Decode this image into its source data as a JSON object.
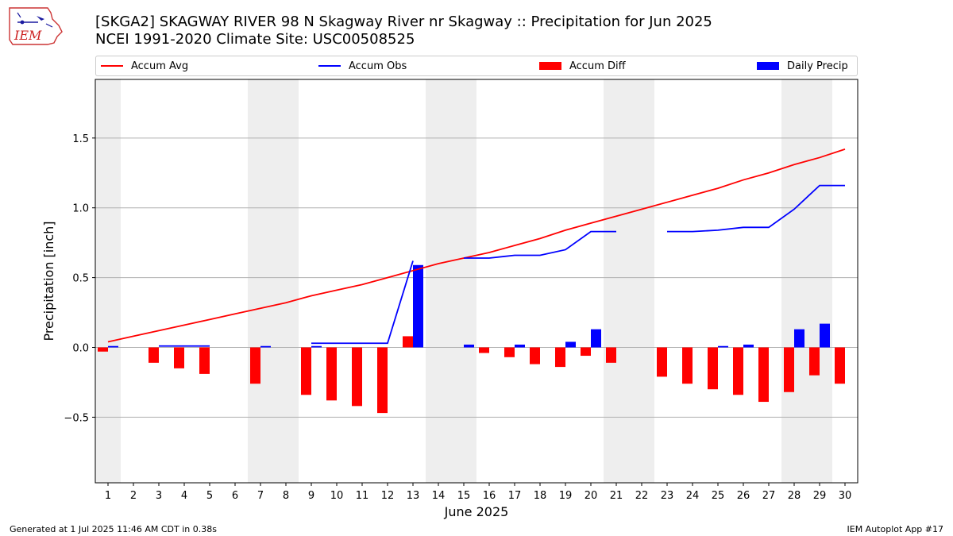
{
  "header": {
    "title_line1": "[SKGA2] SKAGWAY RIVER 98 N Skagway River nr Skagway :: Precipitation for Jun 2025",
    "title_line2": "NCEI 1991-2020 Climate Site: USC00508525"
  },
  "logo": {
    "text": "IEM"
  },
  "legend": {
    "items": [
      {
        "label": "Accum Avg",
        "color": "#ff0000",
        "kind": "line"
      },
      {
        "label": "Accum Obs",
        "color": "#0000ff",
        "kind": "line"
      },
      {
        "label": "Accum Diff",
        "color": "#ff0000",
        "kind": "bar"
      },
      {
        "label": "Daily Precip",
        "color": "#0000ff",
        "kind": "bar"
      }
    ],
    "placement": "top"
  },
  "chart_data": {
    "type": "bar",
    "title": "[SKGA2] SKAGWAY RIVER 98 N Skagway River nr Skagway :: Precipitation for Jun 2025",
    "subtitle": "NCEI 1991-2020 Climate Site: USC00508525",
    "xlabel": "June 2025",
    "ylabel": "Precipitation [inch]",
    "ylim": [
      -0.97,
      1.92
    ],
    "yticks": [
      -0.5,
      0.0,
      0.5,
      1.0,
      1.5
    ],
    "ytick_labels": [
      "−0.5",
      "0.0",
      "0.5",
      "1.0",
      "1.5"
    ],
    "x": [
      1,
      2,
      3,
      4,
      5,
      6,
      7,
      8,
      9,
      10,
      11,
      12,
      13,
      14,
      15,
      16,
      17,
      18,
      19,
      20,
      21,
      22,
      23,
      24,
      25,
      26,
      27,
      28,
      29,
      30
    ],
    "xtick_labels": [
      "1",
      "2",
      "3",
      "4",
      "5",
      "6",
      "7",
      "8",
      "9",
      "10",
      "11",
      "12",
      "13",
      "14",
      "15",
      "16",
      "17",
      "18",
      "19",
      "20",
      "21",
      "22",
      "23",
      "24",
      "25",
      "26",
      "27",
      "28",
      "29",
      "30"
    ],
    "grid": "horizontal",
    "weekend_shading": [
      [
        1,
        1
      ],
      [
        7,
        8
      ],
      [
        14,
        15
      ],
      [
        21,
        22
      ],
      [
        28,
        29
      ]
    ],
    "weekend_color": "#eeeeee",
    "series": [
      {
        "name": "Accum Avg",
        "type": "line",
        "color": "#ff0000",
        "values": [
          0.04,
          0.08,
          0.12,
          0.16,
          0.2,
          0.24,
          0.28,
          0.32,
          0.37,
          0.41,
          0.45,
          0.5,
          0.55,
          0.6,
          0.64,
          0.68,
          0.73,
          0.78,
          0.84,
          0.89,
          0.94,
          0.99,
          1.04,
          1.09,
          1.14,
          1.2,
          1.25,
          1.31,
          1.36,
          1.42
        ]
      },
      {
        "name": "Accum Obs",
        "type": "line",
        "color": "#0000ff",
        "values": [
          null,
          null,
          0.01,
          0.01,
          0.01,
          null,
          null,
          null,
          0.03,
          0.03,
          0.03,
          0.03,
          0.62,
          null,
          0.64,
          0.64,
          0.66,
          0.66,
          0.7,
          0.83,
          0.83,
          null,
          0.83,
          0.83,
          0.84,
          0.86,
          0.86,
          0.99,
          1.16,
          1.16
        ]
      },
      {
        "name": "Accum Diff",
        "type": "bar",
        "color": "#ff0000",
        "values": [
          -0.03,
          null,
          -0.11,
          -0.15,
          -0.19,
          null,
          -0.26,
          null,
          -0.34,
          -0.38,
          -0.42,
          -0.47,
          0.08,
          null,
          0.0,
          -0.04,
          -0.07,
          -0.12,
          -0.14,
          -0.06,
          -0.11,
          null,
          -0.21,
          -0.26,
          -0.3,
          -0.34,
          -0.39,
          -0.32,
          -0.2,
          -0.26
        ]
      },
      {
        "name": "Daily Precip",
        "type": "bar",
        "color": "#0000ff",
        "values": [
          0.01,
          null,
          null,
          null,
          null,
          null,
          0.01,
          null,
          0.01,
          null,
          null,
          null,
          0.59,
          null,
          0.02,
          null,
          0.02,
          null,
          0.04,
          0.13,
          null,
          null,
          null,
          null,
          0.01,
          0.02,
          null,
          0.13,
          0.17,
          null
        ]
      }
    ]
  },
  "footer": {
    "left": "Generated at 1 Jul 2025 11:46 AM CDT in 0.38s",
    "right": "IEM Autoplot App #17"
  }
}
